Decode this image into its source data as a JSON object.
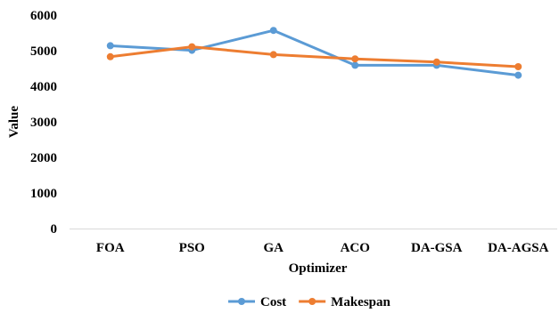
{
  "chart_data": {
    "type": "line",
    "categories": [
      "FOA",
      "PSO",
      "GA",
      "ACO",
      "DA-GSA",
      "DA-AGSA"
    ],
    "series": [
      {
        "name": "Cost",
        "color": "#5b9bd5",
        "values": [
          5140,
          5010,
          5570,
          4590,
          4590,
          4310
        ]
      },
      {
        "name": "Makespan",
        "color": "#ed7d31",
        "values": [
          4830,
          5110,
          4890,
          4770,
          4680,
          4550
        ]
      }
    ],
    "xlabel": "Optimizer",
    "ylabel": "Value",
    "ylim": [
      0,
      6000
    ],
    "yticks": [
      0,
      1000,
      2000,
      3000,
      4000,
      5000,
      6000
    ],
    "grid": false,
    "legend": "bottom"
  }
}
